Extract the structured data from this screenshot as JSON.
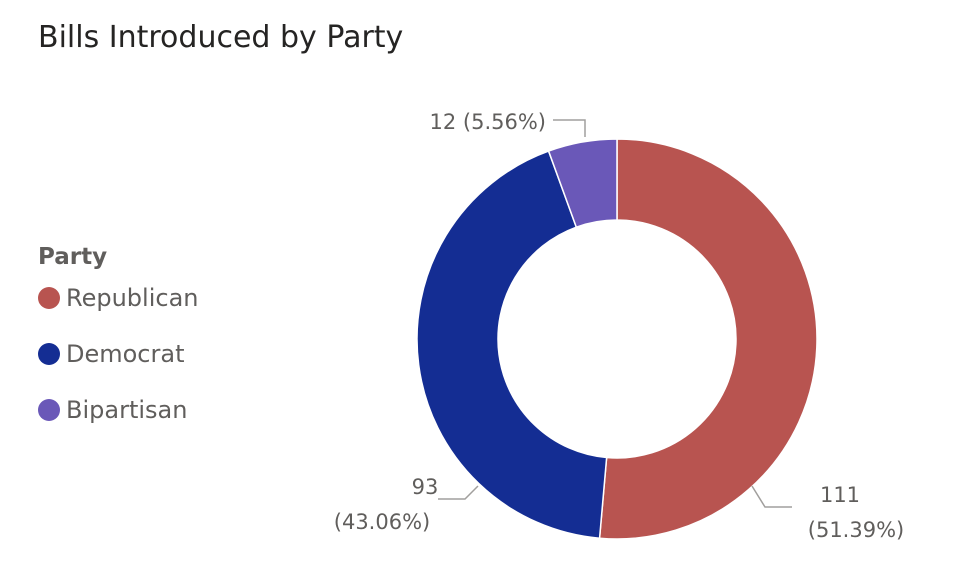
{
  "chart_data": {
    "type": "pie",
    "title": "Bills Introduced by Party",
    "legend": {
      "title": "Party",
      "placement": "left"
    },
    "donut": true,
    "slices": [
      {
        "name": "Republican",
        "value": 111,
        "percent": "51.39%",
        "color": "#b85450"
      },
      {
        "name": "Democrat",
        "value": 93,
        "percent": "43.06%",
        "color": "#142d93"
      },
      {
        "name": "Bipartisan",
        "value": 12,
        "percent": "5.56%",
        "color": "#6a58b8"
      }
    ],
    "data_labels": [
      {
        "series": "Republican",
        "line1": "111",
        "line2": "(51.39%)"
      },
      {
        "series": "Democrat",
        "line1": "93",
        "line2": "(43.06%)"
      },
      {
        "series": "Bipartisan",
        "line1": "12 (5.56%)"
      }
    ]
  }
}
